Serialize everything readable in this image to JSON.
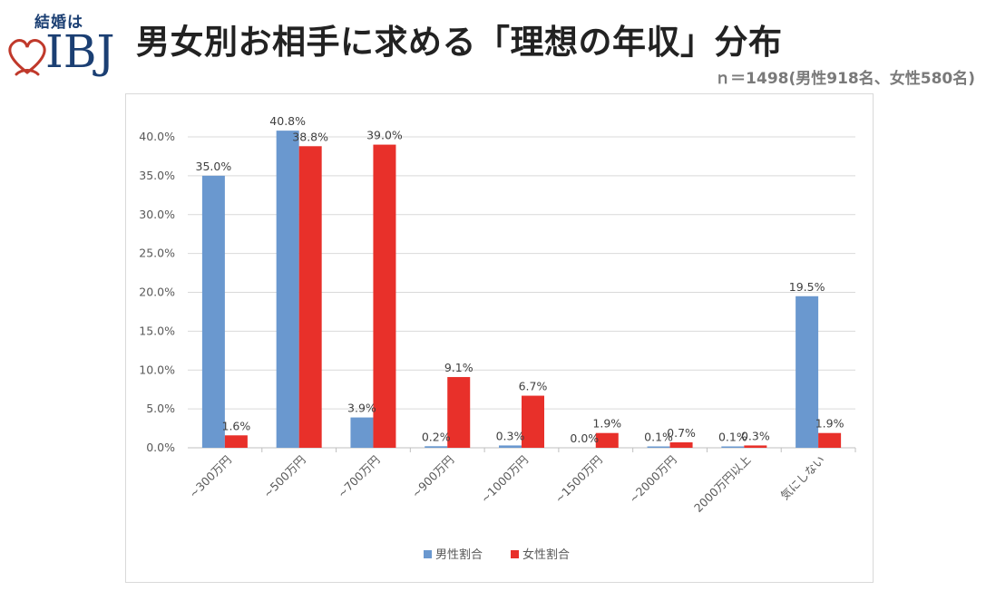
{
  "logo": {
    "top_text": "結婚は",
    "brand": "IBJ"
  },
  "header": {
    "title": "男女別お相手に求める「理想の年収」分布",
    "subtitle": "ｎ＝1498(男性918名、女性580名)"
  },
  "colors": {
    "male": "#6a98cf",
    "female": "#e8302a",
    "grid": "#d9d9d9",
    "brand": "#1b3f73",
    "heart": "#c0392b"
  },
  "chart_data": {
    "type": "bar",
    "title": "",
    "xlabel": "",
    "ylabel": "",
    "ylim": [
      0,
      40
    ],
    "yticks": [
      "0.0%",
      "5.0%",
      "10.0%",
      "15.0%",
      "20.0%",
      "25.0%",
      "30.0%",
      "35.0%",
      "40.0%"
    ],
    "grid": true,
    "legend_position": "bottom",
    "categories": [
      "~300万円",
      "~500万円",
      "~700万円",
      "~900万円",
      "~1000万円",
      "~1500万円",
      "~2000万円",
      "2000万円以上",
      "気にしない"
    ],
    "series": [
      {
        "name": "男性割合",
        "values": [
          35.0,
          40.8,
          3.9,
          0.2,
          0.3,
          0.0,
          0.1,
          0.1,
          19.5
        ],
        "labels": [
          "35.0%",
          "40.8%",
          "3.9%",
          "0.2%",
          "0.3%",
          "0.0%",
          "0.1%",
          "0.1%",
          "19.5%"
        ]
      },
      {
        "name": "女性割合",
        "values": [
          1.6,
          38.8,
          39.0,
          9.1,
          6.7,
          1.9,
          0.7,
          0.3,
          1.9
        ],
        "labels": [
          "1.6%",
          "38.8%",
          "39.0%",
          "9.1%",
          "6.7%",
          "1.9%",
          "0.7%",
          "0.3%",
          "1.9%"
        ]
      }
    ]
  }
}
